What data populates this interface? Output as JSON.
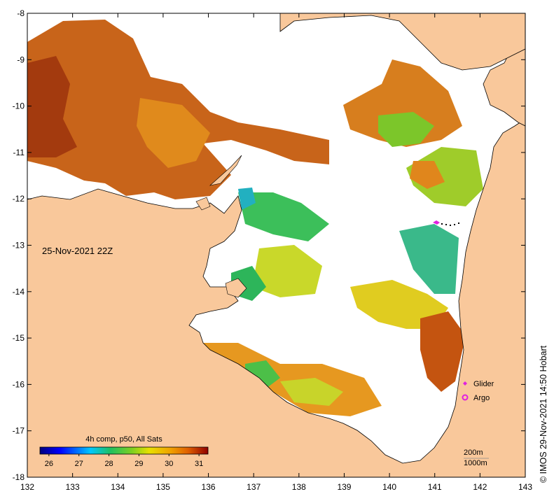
{
  "map": {
    "date_label": "25-Nov-2021 22Z",
    "credit": "© IMOS 29-Nov-2021 14:50 Hobart",
    "x_ticks": [
      "132",
      "133",
      "134",
      "135",
      "136",
      "137",
      "138",
      "139",
      "140",
      "141",
      "142",
      "143"
    ],
    "y_ticks": [
      "-8",
      "-9",
      "-10",
      "-11",
      "-12",
      "-13",
      "-14",
      "-15",
      "-16",
      "-17",
      "-18"
    ],
    "colorbar": {
      "title": "4h comp, p50, All Sats",
      "ticks": [
        "26",
        "27",
        "28",
        "29",
        "30",
        "31"
      ],
      "min": 25.7,
      "max": 31.3
    },
    "legend": {
      "glider_label": "Glider",
      "argo_label": "Argo"
    },
    "depth_labels": [
      "200m",
      "1000m"
    ],
    "colors": {
      "land": "#f9c89b",
      "ocean_no_data": "#ffffff",
      "glider": "#e020e0",
      "argo": "#e020e0"
    }
  }
}
